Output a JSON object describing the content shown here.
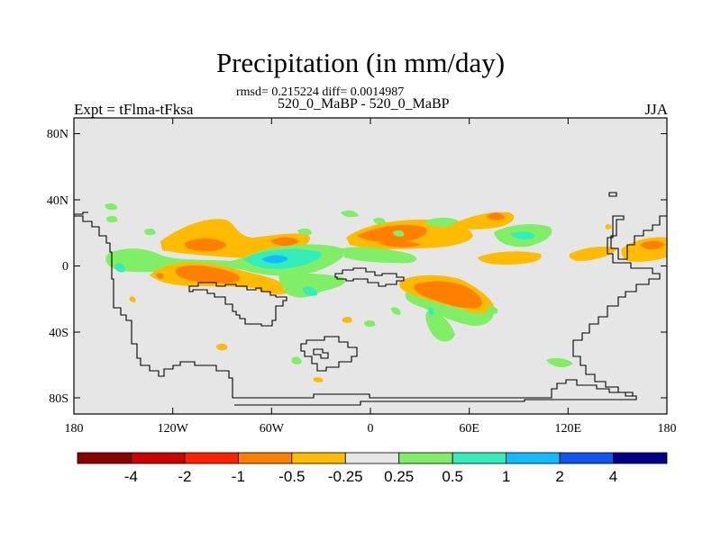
{
  "title": "Precipitation (in mm/day)",
  "stats_line": "rmsd= 0.215224 diff= 0.0014987",
  "subtitle": "520_0_MaBP - 520_0_MaBP",
  "left_label": "Expt = tFlma-tFksa",
  "right_label": "JJA",
  "x_ticks": [
    "180",
    "120W",
    "60W",
    "0",
    "60E",
    "120E",
    "180"
  ],
  "y_ticks": [
    "80N",
    "40N",
    "0",
    "40S",
    "80S"
  ],
  "colorbar": {
    "colors": [
      "#8b0000",
      "#cc0000",
      "#ff2200",
      "#ff7f00",
      "#ffbb00",
      "#e6e6e6",
      "#80ee66",
      "#33eebb",
      "#11bbff",
      "#1155ee",
      "#000088"
    ],
    "labels": [
      "-4",
      "-2",
      "-1",
      "-0.5",
      "-0.25",
      "0.25",
      "0.5",
      "1",
      "2",
      "4"
    ]
  },
  "colors": {
    "background": "#e6e6e6",
    "orange": "#ff7f00",
    "yellow": "#ffbb00",
    "green": "#80ee66",
    "cyan": "#33eebb",
    "blue": "#11bbff",
    "coast": "#000000"
  }
}
